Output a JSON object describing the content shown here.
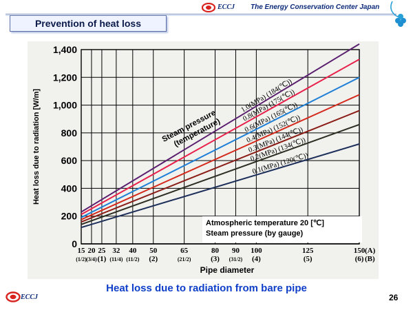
{
  "header": {
    "org_abbr": "ECCJ",
    "org_name": "The Energy Conservation Center Japan",
    "slide_title": "Prevention of heat loss"
  },
  "footer": {
    "caption": "Heat loss due to radiation from bare pipe",
    "page_number": "26",
    "org_abbr": "ECCJ"
  },
  "notes": {
    "line1": "Atmospheric temperature 20 [℃]",
    "line2": "Steam pressure (by gauge)"
  },
  "colors": {
    "accent": "#0f3fc8",
    "logo_red": "#d8231e",
    "chart_bg": "#f1f1ee"
  },
  "chart_data": {
    "type": "line",
    "ylabel": "Heat loss due to radiation [W/m]",
    "xlabel": "Pipe diameter",
    "ylim": [
      0,
      1400
    ],
    "yticks": [
      "0",
      "200",
      "400",
      "600",
      "800",
      "1,000",
      "1,200",
      "1,400"
    ],
    "x_categories": [
      {
        "a": "15",
        "b": "(1/2)"
      },
      {
        "a": "20",
        "b": "(3/4)"
      },
      {
        "a": "25",
        "b": "(1)"
      },
      {
        "a": "32",
        "b": "(11/4)"
      },
      {
        "a": "40",
        "b": "(11/2)"
      },
      {
        "a": "50",
        "b": "(2)"
      },
      {
        "a": "65",
        "b": "(21/2)"
      },
      {
        "a": "80",
        "b": "(3)"
      },
      {
        "a": "90",
        "b": "(31/2)"
      },
      {
        "a": "100",
        "b": "(4)"
      },
      {
        "a": "125",
        "b": "(5)"
      },
      {
        "a": "150",
        "b": "(6)"
      }
    ],
    "row_labels": [
      "(A)",
      "(B)"
    ],
    "series_group_label": "Steam pressure (temperature)",
    "x_range": [
      15,
      150
    ],
    "series": [
      {
        "name": "1.0(MPa) (184(℃))",
        "color": "#5a1f6e",
        "x": [
          15,
          150
        ],
        "values": [
          230,
          1440
        ]
      },
      {
        "name": "0.8(MPa) (175(℃))",
        "color": "#e8204a",
        "x": [
          15,
          150
        ],
        "values": [
          212,
          1330
        ]
      },
      {
        "name": "0.6(MPa) (165(℃))",
        "color": "#1e7fd6",
        "x": [
          15,
          150
        ],
        "values": [
          190,
          1200
        ]
      },
      {
        "name": "0.4(MPa) (152(℃))",
        "color": "#d42a1c",
        "x": [
          15,
          150
        ],
        "values": [
          175,
          1075
        ]
      },
      {
        "name": "0.3(MPa) (144(℃))",
        "color": "#8b1c16",
        "x": [
          15,
          150
        ],
        "values": [
          158,
          960
        ]
      },
      {
        "name": "0.2(MPa) (134(℃))",
        "color": "#2d2d22",
        "x": [
          15,
          150
        ],
        "values": [
          140,
          860
        ]
      },
      {
        "name": "0.1(MPa) (120(℃))",
        "color": "#1c2e5a",
        "x": [
          15,
          150
        ],
        "values": [
          118,
          720
        ]
      }
    ]
  }
}
